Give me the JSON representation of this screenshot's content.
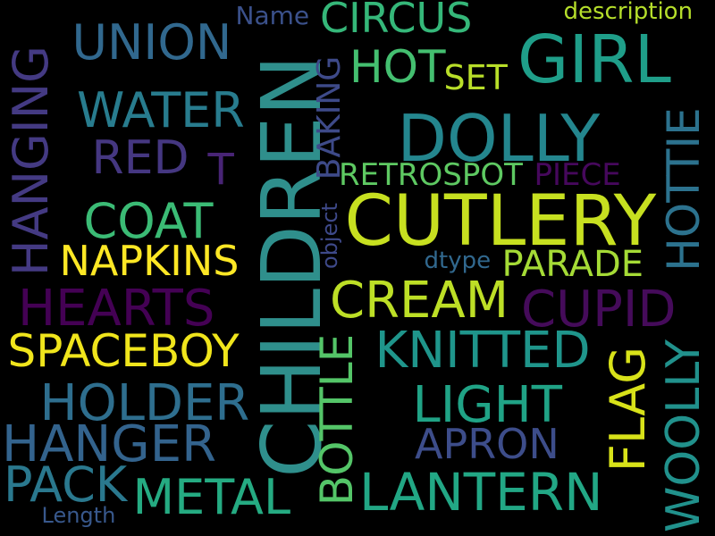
{
  "background": "#000000",
  "words": [
    {
      "text": "CHILDREN",
      "color": "#2f8f8c",
      "rotated": true
    },
    {
      "text": "CUTLERY",
      "color": "#c7e020",
      "rotated": false
    },
    {
      "text": "DOLLY",
      "color": "#24868e",
      "rotated": false
    },
    {
      "text": "GIRL",
      "color": "#1f9e89",
      "rotated": false
    },
    {
      "text": "HANGING",
      "color": "#443a83",
      "rotated": true
    },
    {
      "text": "HOTTIE",
      "color": "#2c728e",
      "rotated": true
    },
    {
      "text": "UNION",
      "color": "#31688e",
      "rotated": false
    },
    {
      "text": "WATER",
      "color": "#287c8e",
      "rotated": false
    },
    {
      "text": "CIRCUS",
      "color": "#35b779",
      "rotated": false
    },
    {
      "text": "Name",
      "color": "#3b518b",
      "rotated": false
    },
    {
      "text": "description",
      "color": "#b5de2b",
      "rotated": false
    },
    {
      "text": "HOT",
      "color": "#44bf70",
      "rotated": false
    },
    {
      "text": "SET",
      "color": "#b8de29",
      "rotated": false
    },
    {
      "text": "BAKING",
      "color": "#3e4a89",
      "rotated": true
    },
    {
      "text": "RED",
      "color": "#453781",
      "rotated": false
    },
    {
      "text": "T",
      "color": "#482475",
      "rotated": false
    },
    {
      "text": "RETROSPOT",
      "color": "#5ec962",
      "rotated": false
    },
    {
      "text": "PIECE",
      "color": "#46085c",
      "rotated": false
    },
    {
      "text": "COAT",
      "color": "#3bbb75",
      "rotated": false
    },
    {
      "text": "object",
      "color": "#3e4989",
      "rotated": true
    },
    {
      "text": "NAPKINS",
      "color": "#fde725",
      "rotated": false
    },
    {
      "text": "dtype",
      "color": "#31688e",
      "rotated": false
    },
    {
      "text": "PARADE",
      "color": "#a5db36",
      "rotated": false
    },
    {
      "text": "HEARTS",
      "color": "#440154",
      "rotated": false
    },
    {
      "text": "CREAM",
      "color": "#bddf26",
      "rotated": false
    },
    {
      "text": "CUPID",
      "color": "#450b5a",
      "rotated": false
    },
    {
      "text": "SPACEBOY",
      "color": "#f0e51c",
      "rotated": false
    },
    {
      "text": "BOTTLE",
      "color": "#54c568",
      "rotated": true
    },
    {
      "text": "KNITTED",
      "color": "#1f958b",
      "rotated": false
    },
    {
      "text": "HOLDER",
      "color": "#2e6e8e",
      "rotated": false
    },
    {
      "text": "LIGHT",
      "color": "#20a386",
      "rotated": false
    },
    {
      "text": "FLAG",
      "color": "#d8e219",
      "rotated": true
    },
    {
      "text": "WOOLLY",
      "color": "#21918c",
      "rotated": true
    },
    {
      "text": "HANGER",
      "color": "#33638d",
      "rotated": false
    },
    {
      "text": "APRON",
      "color": "#3d4d8a",
      "rotated": false
    },
    {
      "text": "PACK",
      "color": "#2a788e",
      "rotated": false
    },
    {
      "text": "METAL",
      "color": "#25ab82",
      "rotated": false
    },
    {
      "text": "LANTERN",
      "color": "#22a785",
      "rotated": false
    },
    {
      "text": "Length",
      "color": "#38588c",
      "rotated": false
    }
  ]
}
